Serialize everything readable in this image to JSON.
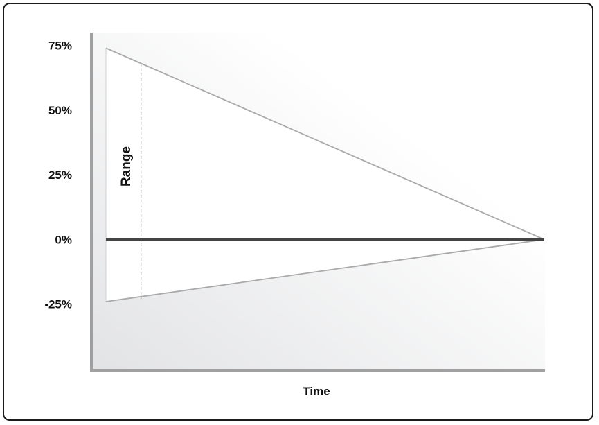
{
  "chart_data": {
    "type": "line",
    "title": "",
    "xlabel": "Time",
    "ylabel": "",
    "ylim": [
      -50,
      80
    ],
    "ytick_labels": [
      "75%",
      "50%",
      "25%",
      "0%",
      "-25%"
    ],
    "yticks": [
      75,
      50,
      25,
      0,
      -25
    ],
    "annotation": "Range",
    "grid": false,
    "series": [
      {
        "values": [
          74,
          0
        ],
        "color": "#a9a9a9"
      },
      {
        "values": [
          -24,
          0
        ],
        "color": "#a9a9a9"
      },
      {
        "values": [
          0,
          0
        ],
        "color": "#444444"
      }
    ],
    "range_marker": {
      "x": 0.08,
      "upper": 68,
      "lower": -23
    }
  },
  "colors": {
    "axis": "#a0a0a0",
    "background_gradient_start": "#e2e3e5",
    "background_gradient_end": "#ffffff",
    "cone_fill": "#ffffff",
    "zero_line": "#444444",
    "bound_line": "#a9a9a9",
    "range_line": "#9a9a9a"
  }
}
